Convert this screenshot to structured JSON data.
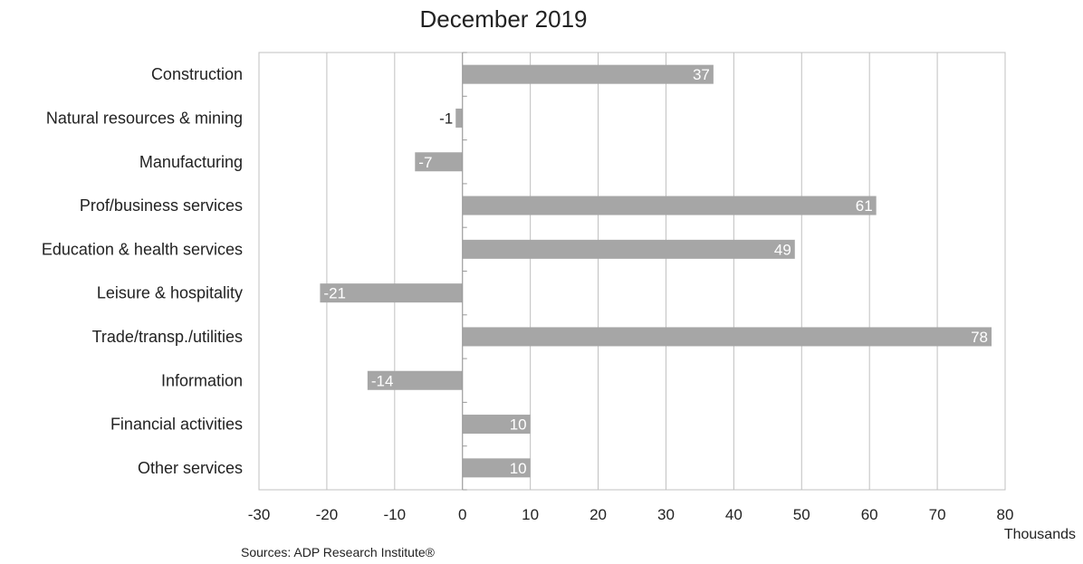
{
  "chart_data": {
    "type": "bar",
    "orientation": "horizontal",
    "title": "December 2019",
    "categories": [
      "Construction",
      "Natural resources & mining",
      "Manufacturing",
      "Prof/business services",
      "Education & health services",
      "Leisure & hospitality",
      "Trade/transp./utilities",
      "Information",
      "Financial activities",
      "Other services"
    ],
    "values": [
      37,
      -1,
      -7,
      61,
      49,
      -21,
      78,
      -14,
      10,
      10
    ],
    "data_labels": [
      "37",
      "-1",
      "-7",
      "61",
      "49",
      "-21",
      "78",
      "-14",
      "10",
      "10"
    ],
    "xlim": [
      -30,
      80
    ],
    "x_ticks": [
      -30,
      -20,
      -10,
      0,
      10,
      20,
      30,
      40,
      50,
      60,
      70,
      80
    ],
    "x_tick_labels": [
      "-30",
      "-20",
      "-10",
      "0",
      "10",
      "20",
      "30",
      "40",
      "50",
      "60",
      "70",
      "80"
    ],
    "x_unit_label": "Thousands",
    "grid": "vertical",
    "bar_color": "#a6a6a6",
    "grid_color": "#c0c0c0",
    "legend": "none"
  },
  "source_note": "Sources: ADP Research Institute®"
}
